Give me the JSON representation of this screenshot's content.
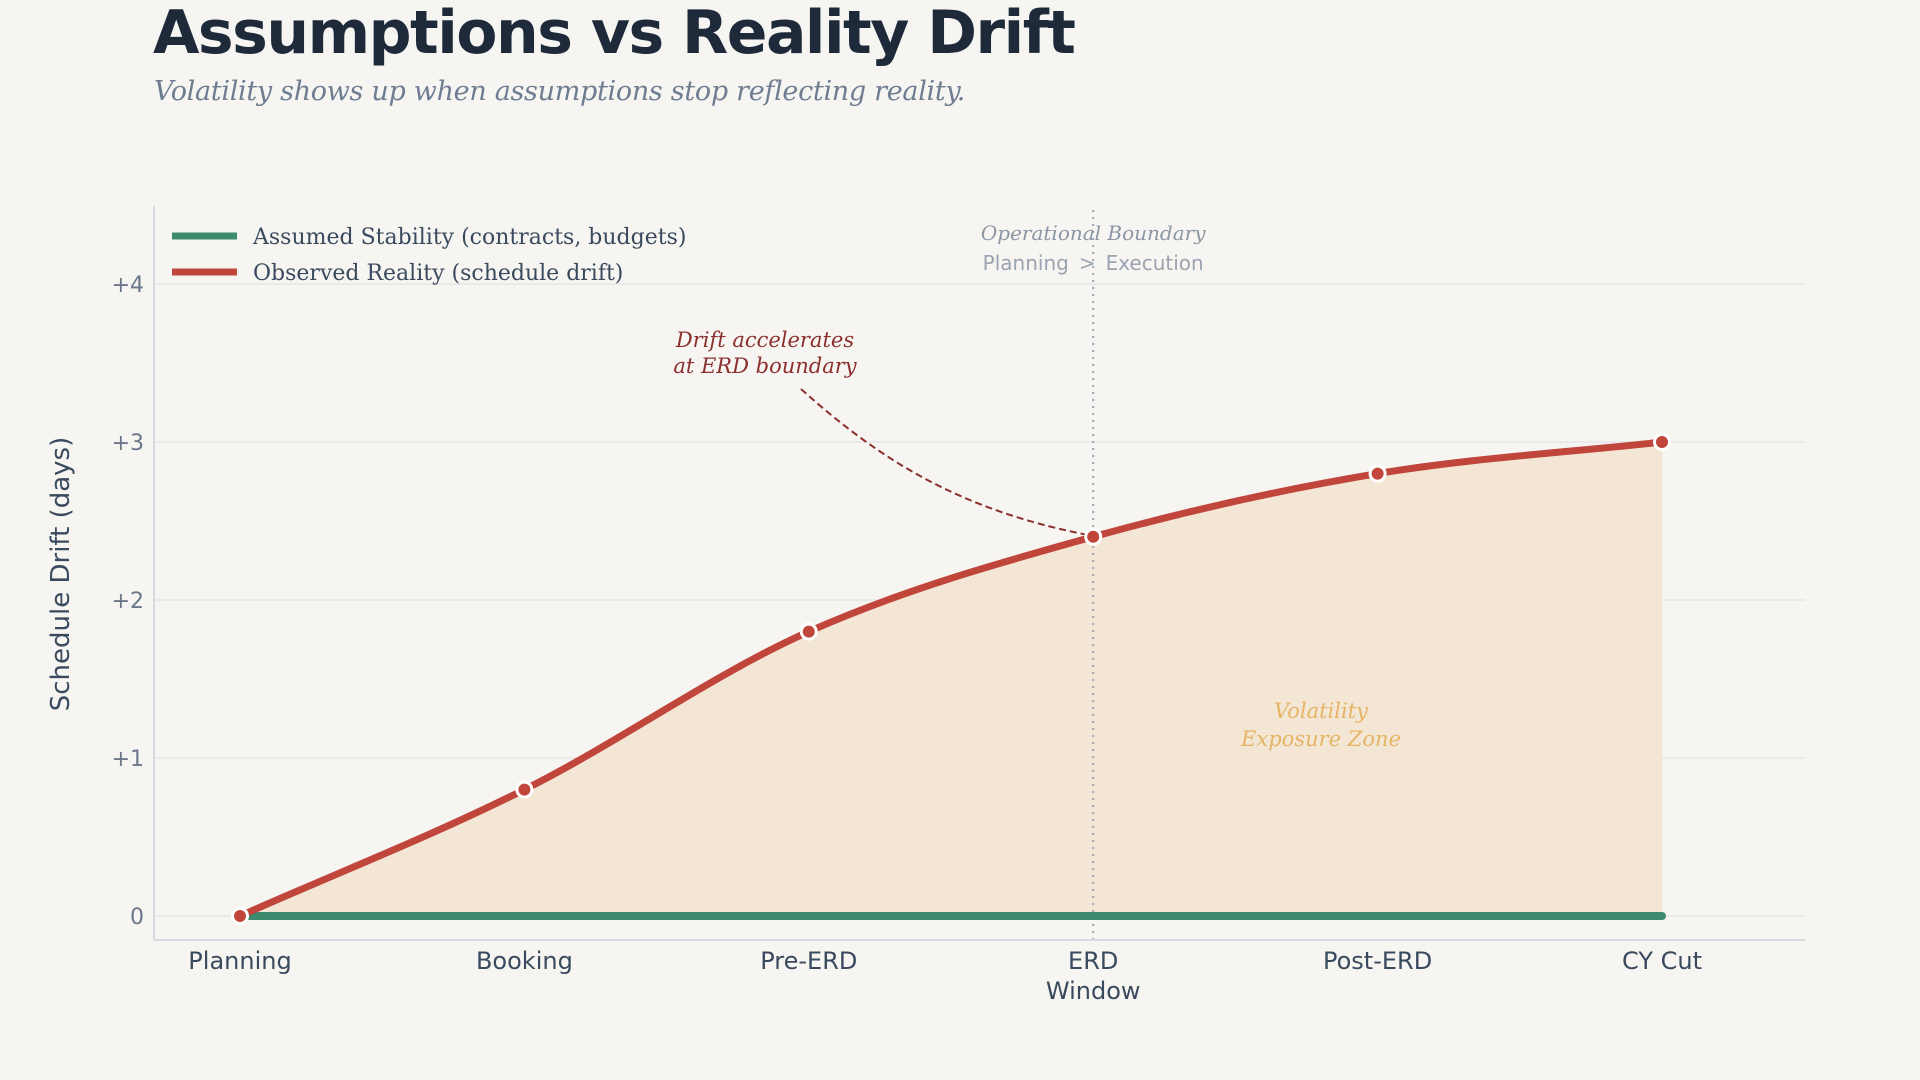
{
  "header": {
    "title": "Assumptions vs Reality Drift",
    "subtitle": "Volatility shows up when assumptions stop reflecting reality."
  },
  "colors": {
    "background": "#f6f5f1",
    "assumed": "#3e8a6e",
    "observed": "#c0463c",
    "fill": "#f3e6d4",
    "grid": "#e2e3e6",
    "axis": "#d7dbe0",
    "boundary": "#9aa3b1",
    "annotation": "#8b2f2f",
    "zone_text": "#e5b465"
  },
  "chart_data": {
    "type": "line",
    "title": "Assumptions vs Reality Drift",
    "subtitle": "Volatility shows up when assumptions stop reflecting reality.",
    "xlabel": "",
    "ylabel": "Schedule Drift (days)",
    "categories": [
      "Planning",
      "Booking",
      "Pre-ERD",
      "ERD Window",
      "Post-ERD",
      "CY Cut"
    ],
    "category_lines": [
      [
        "Planning"
      ],
      [
        "Booking"
      ],
      [
        "Pre-ERD"
      ],
      [
        "ERD",
        "Window"
      ],
      [
        "Post-ERD"
      ],
      [
        "CY Cut"
      ]
    ],
    "ylim": [
      -0.15,
      4.5
    ],
    "yticks": [
      0,
      1,
      2,
      3,
      4
    ],
    "ytick_labels": [
      "0",
      "+1",
      "+2",
      "+3",
      "+4"
    ],
    "grid": true,
    "legend_position": "top-left",
    "series": [
      {
        "name": "Assumed Stability  (contracts, budgets)",
        "values": [
          0,
          0,
          0,
          0,
          0,
          0
        ],
        "color": "#3e8a6e",
        "markers": false
      },
      {
        "name": "Observed Reality  (schedule drift)",
        "values": [
          0,
          0.8,
          1.8,
          2.4,
          2.8,
          3.0
        ],
        "color": "#c0463c",
        "markers": true,
        "fill_area": true
      }
    ],
    "annotations": {
      "boundary": {
        "at_category": "ERD Window",
        "title": "Operational Boundary",
        "subtitle_left": "Planning",
        "subtitle_sep": ">",
        "subtitle_right": "Execution"
      },
      "drift_note": {
        "lines": [
          "Drift accelerates",
          "at ERD boundary"
        ],
        "points_to": {
          "category": "ERD Window",
          "value": 2.4
        }
      },
      "zone_label": {
        "lines": [
          "Volatility",
          "Exposure Zone"
        ],
        "position": {
          "x_between": [
            "ERD Window",
            "Post-ERD"
          ],
          "y": 1.0
        }
      }
    }
  }
}
